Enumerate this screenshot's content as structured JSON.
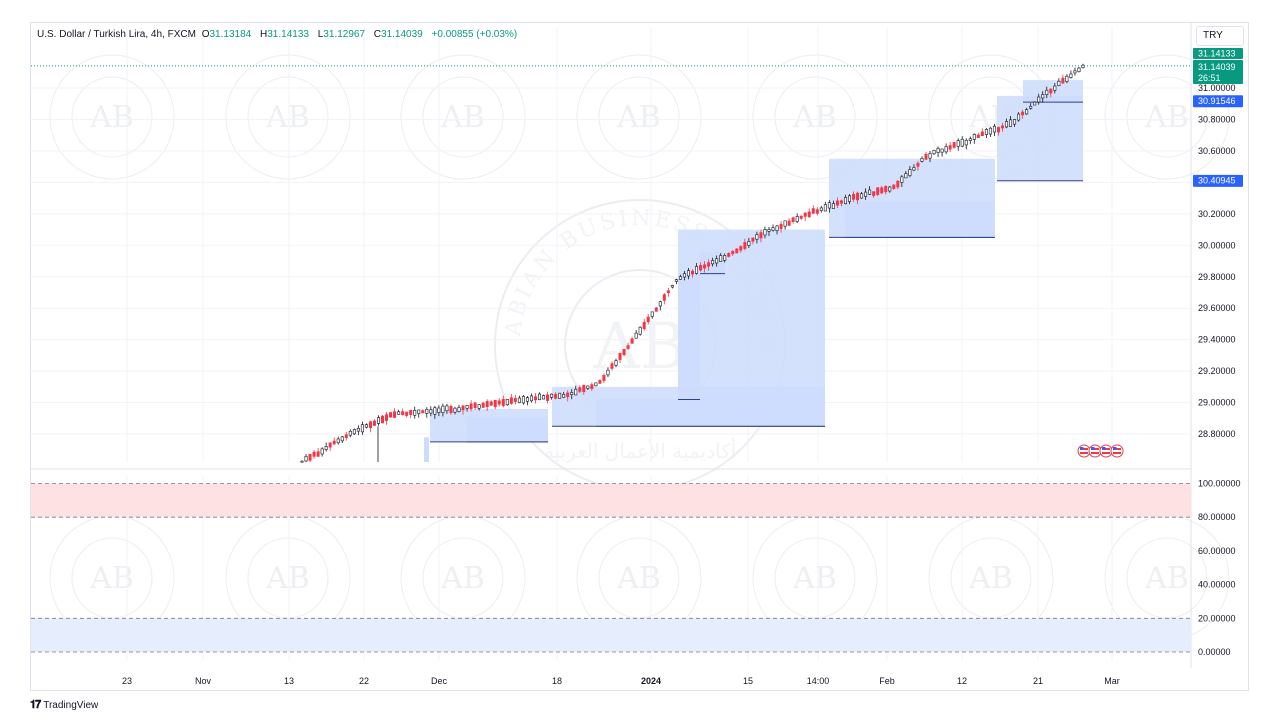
{
  "legend": {
    "symbol": "U.S. Dollar / Turkish Lira, 4h, FXCM",
    "open_label": "O",
    "open": "31.13184",
    "high_label": "H",
    "high": "31.14133",
    "low_label": "L",
    "low": "31.12967",
    "close_label": "C",
    "close": "31.14039",
    "change": "+0.00855 (+0.03%)"
  },
  "currency_button": "TRY",
  "brand": "TradingView",
  "watermark": {
    "monogram": "AB",
    "arc_text": "ARABIAN BUSINESS ACADEMY",
    "arabic_text": "أكاديمية الأعمال العربية"
  },
  "colors": {
    "up": "#089981",
    "down": "#f23645",
    "candle": "#131722",
    "tag_blue": "#2962ff",
    "tag_green": "#089981",
    "zone_fill": "#cddcfd",
    "zone_line": "#2f3f8a",
    "band_red": "#fde1e3",
    "band_blue": "#e6eefe"
  },
  "price_tags": {
    "high": "31.14133",
    "last": "31.14039",
    "countdown": "26:51",
    "level_1": "30.91546",
    "level_2": "30.40945"
  },
  "chart_data": [
    {
      "type": "candlestick",
      "pane": "price",
      "interval": "4h",
      "x_ticks": [
        "23",
        "Nov",
        "13",
        "22",
        "Dec",
        "18",
        "2024",
        "15",
        "14:00",
        "Feb",
        "12",
        "21",
        "Mar"
      ],
      "y_ticks": [
        "28.80000",
        "29.00000",
        "29.20000",
        "29.40000",
        "29.60000",
        "29.80000",
        "30.00000",
        "30.20000",
        "30.40000",
        "30.60000",
        "30.80000",
        "31.00000"
      ],
      "ylim": [
        28.62,
        31.27
      ],
      "current_price": 31.14039,
      "high": 31.14133,
      "levels": [
        30.91546,
        30.40945
      ],
      "trend_points": [
        {
          "t": 0.0,
          "v": 28.62
        },
        {
          "t": 0.06,
          "v": 28.8
        },
        {
          "t": 0.12,
          "v": 28.93
        },
        {
          "t": 0.2,
          "v": 28.96
        },
        {
          "t": 0.28,
          "v": 29.02
        },
        {
          "t": 0.34,
          "v": 29.05
        },
        {
          "t": 0.38,
          "v": 29.12
        },
        {
          "t": 0.44,
          "v": 29.5
        },
        {
          "t": 0.48,
          "v": 29.78
        },
        {
          "t": 0.55,
          "v": 29.95
        },
        {
          "t": 0.6,
          "v": 30.1
        },
        {
          "t": 0.66,
          "v": 30.22
        },
        {
          "t": 0.71,
          "v": 30.31
        },
        {
          "t": 0.76,
          "v": 30.37
        },
        {
          "t": 0.8,
          "v": 30.57
        },
        {
          "t": 0.86,
          "v": 30.68
        },
        {
          "t": 0.91,
          "v": 30.78
        },
        {
          "t": 0.95,
          "v": 30.95
        },
        {
          "t": 1.0,
          "v": 31.14
        }
      ],
      "zones": [
        {
          "top": 28.96,
          "bottom": 28.75
        },
        {
          "top": 28.91,
          "bottom": 28.75
        },
        {
          "top": 29.1,
          "bottom": 28.85
        },
        {
          "top": 29.02,
          "bottom": 28.85
        },
        {
          "top": 30.1,
          "bottom": 28.85
        },
        {
          "top": 29.82,
          "bottom": 29.02
        },
        {
          "top": 29.96,
          "bottom": 29.82
        },
        {
          "top": 30.28,
          "bottom": 30.05
        },
        {
          "top": 30.55,
          "bottom": 30.05
        },
        {
          "top": 30.95,
          "bottom": 30.41
        },
        {
          "top": 31.05,
          "bottom": 30.91
        }
      ]
    },
    {
      "type": "oscillator",
      "pane": "indicator",
      "y_ticks": [
        "100.00000",
        "80.00000",
        "60.00000",
        "40.00000",
        "20.00000",
        "0.00000"
      ],
      "ylim": [
        0,
        100
      ],
      "upper_band": [
        80,
        100
      ],
      "lower_band": [
        0,
        20
      ]
    }
  ]
}
